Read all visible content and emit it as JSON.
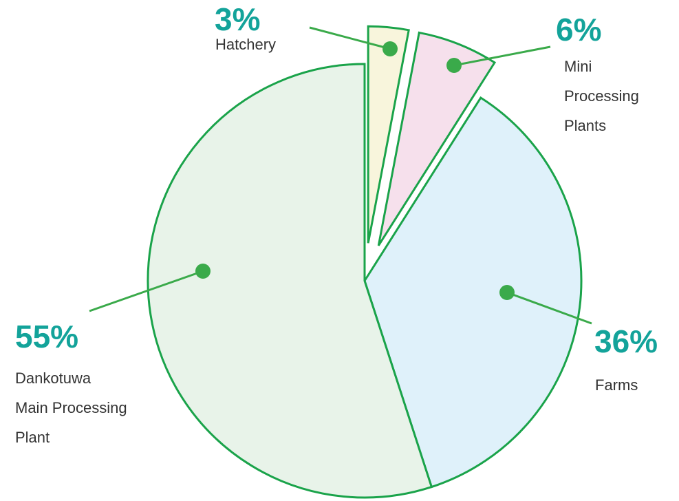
{
  "chart_data": {
    "type": "pie",
    "categories": [
      "Hatchery",
      "Mini\nProcessing\nPlants",
      "Farms",
      "Dankotuwa\nMain Processing\nPlant"
    ],
    "values": [
      3,
      6,
      36,
      55
    ],
    "value_labels": [
      "3%",
      "6%",
      "36%",
      "55%"
    ],
    "colors": [
      "#f8f5dc",
      "#f6e0ec",
      "#dff1fa",
      "#e8f3e9"
    ],
    "explode": [
      true,
      true,
      false,
      false
    ],
    "edge_color": "#1aa34a",
    "marker_color": "#3aaa4a",
    "label_color": "#13a39a"
  }
}
